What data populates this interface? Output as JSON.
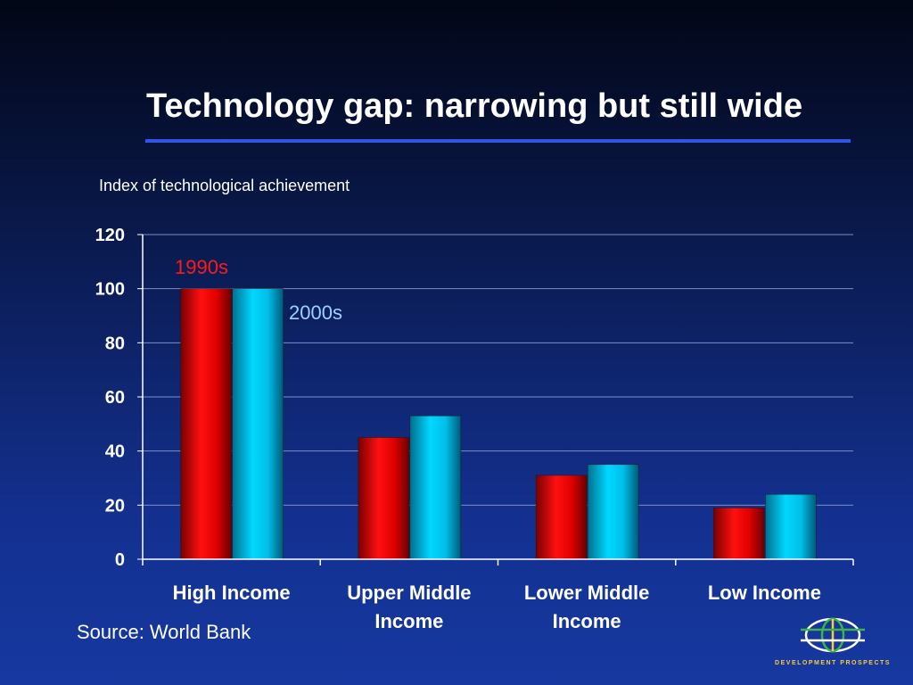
{
  "slide": {
    "title": "Technology gap: narrowing but still wide",
    "source": "Source: World Bank",
    "logo_text": "DEVELOPMENT PROSPECTS",
    "accent_color": "#2f55e4"
  },
  "chart_data": {
    "type": "bar",
    "title": "",
    "subtitle": "Index of technological achievement",
    "xlabel": "",
    "ylabel": "",
    "categories": [
      [
        "High Income"
      ],
      [
        "Upper Middle",
        "Income"
      ],
      [
        "Lower Middle",
        "Income"
      ],
      [
        "Low Income"
      ]
    ],
    "series": [
      {
        "name": "1990s",
        "values": [
          100,
          45,
          31,
          19
        ],
        "color": "#e00000",
        "label_color": "#ff1a1a"
      },
      {
        "name": "2000s",
        "values": [
          100,
          53,
          35,
          24
        ],
        "color": "#00c8f0",
        "label_color": "#9fd0ff"
      }
    ],
    "ylim": [
      0,
      120
    ],
    "yticks": [
      0,
      20,
      40,
      60,
      80,
      100,
      120
    ],
    "grid": true,
    "legend": "in-plot labels above the High Income bars"
  }
}
